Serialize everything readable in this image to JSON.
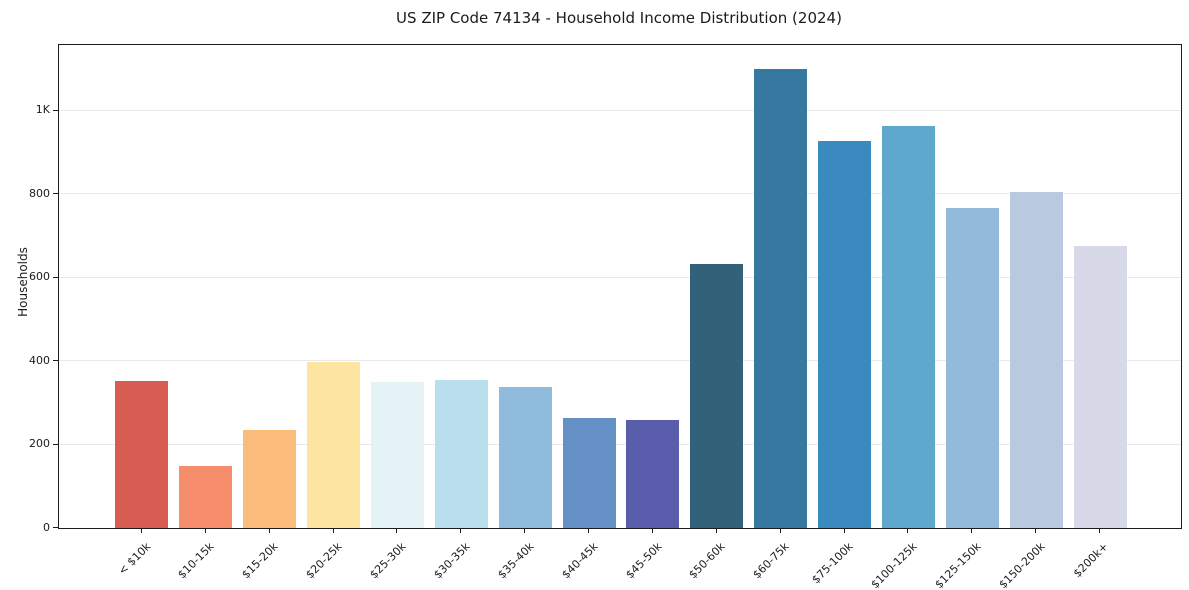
{
  "chart_data": {
    "type": "bar",
    "title": "US ZIP Code 74134 - Household Income Distribution (2024)",
    "xlabel": "",
    "ylabel": "Households",
    "categories": [
      "< $10k",
      "$10-15k",
      "$15-20k",
      "$20-25k",
      "$25-30k",
      "$30-35k",
      "$35-40k",
      "$40-45k",
      "$45-50k",
      "$50-60k",
      "$60-75k",
      "$75-100k",
      "$100-125k",
      "$125-150k",
      "$150-200k",
      "$200k+"
    ],
    "values": [
      352,
      149,
      236,
      398,
      350,
      355,
      339,
      264,
      259,
      633,
      1100,
      928,
      964,
      767,
      806,
      675
    ],
    "bar_colors": [
      "#d95c52",
      "#f68e6c",
      "#fbbb7a",
      "#fde4a1",
      "#e5f2f6",
      "#b9dfed",
      "#8fbcdd",
      "#6590c5",
      "#5a5dab",
      "#34617a",
      "#36789f",
      "#3a8ac0",
      "#5ea7cd",
      "#93b9db",
      "#b9c9e0",
      "#d7d9e8"
    ],
    "ytick_values": [
      0,
      200,
      400,
      600,
      800,
      1000
    ],
    "ytick_labels": [
      "0",
      "200",
      "400",
      "600",
      "800",
      "1K"
    ],
    "ylim": [
      0,
      1158
    ],
    "grid": true,
    "gridline_color": "#e9e9ef",
    "axis_color": "#1c1c1c",
    "background_color": "#ffffff",
    "legend": "none"
  }
}
